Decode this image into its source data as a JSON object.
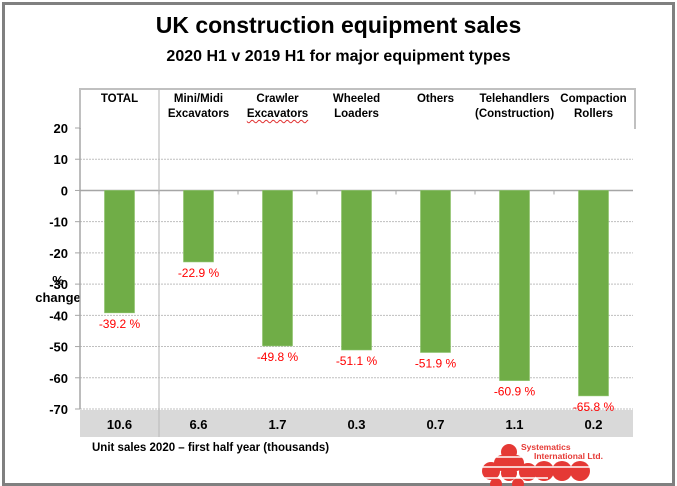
{
  "title": "UK construction equipment sales",
  "subtitle": "2020 H1  v  2019 H1  for major equipment types",
  "y_axis_label_line1": "%",
  "y_axis_label_line2": "change",
  "footer_note": "Unit sales 2020 – first half year (thousands)",
  "logo": {
    "line1": "Systematics",
    "line2": "International Ltd.",
    "color": "#e53935"
  },
  "colors": {
    "bar": "#70ad47",
    "data_label": "#ff0000",
    "band": "#d9d9d9",
    "grid": "#bfbfbf"
  },
  "chart_data": {
    "type": "bar",
    "title": "UK construction equipment sales",
    "subtitle": "2020 H1 v 2019 H1 for major equipment types",
    "categories": [
      {
        "line1": "TOTAL",
        "line2": ""
      },
      {
        "line1": "Mini/Midi",
        "line2": "Excavators"
      },
      {
        "line1": "Crawler",
        "line2": "Excavators"
      },
      {
        "line1": "Wheeled",
        "line2": "Loaders"
      },
      {
        "line1": "Others",
        "line2": ""
      },
      {
        "line1": "Telehandlers",
        "line2": "(Construction)"
      },
      {
        "line1": "Compaction",
        "line2": "Rollers"
      }
    ],
    "values": [
      -39.2,
      -22.9,
      -49.8,
      -51.1,
      -51.9,
      -60.9,
      -65.8
    ],
    "data_labels": [
      "-39.2 %",
      "-22.9 %",
      "-49.8 %",
      "-51.1 %",
      "-51.9 %",
      "-60.9 %",
      "-65.8 %"
    ],
    "unit_sales_thousands": [
      "10.6",
      "6.6",
      "1.7",
      "0.3",
      "0.7",
      "1.1",
      "0.2"
    ],
    "xlabel": "",
    "ylabel": "% change",
    "ylim": [
      -70,
      20
    ],
    "yticks": [
      20,
      10,
      0,
      -10,
      -20,
      -30,
      -40,
      -50,
      -60,
      -70
    ],
    "grid": true,
    "legend": "none"
  }
}
